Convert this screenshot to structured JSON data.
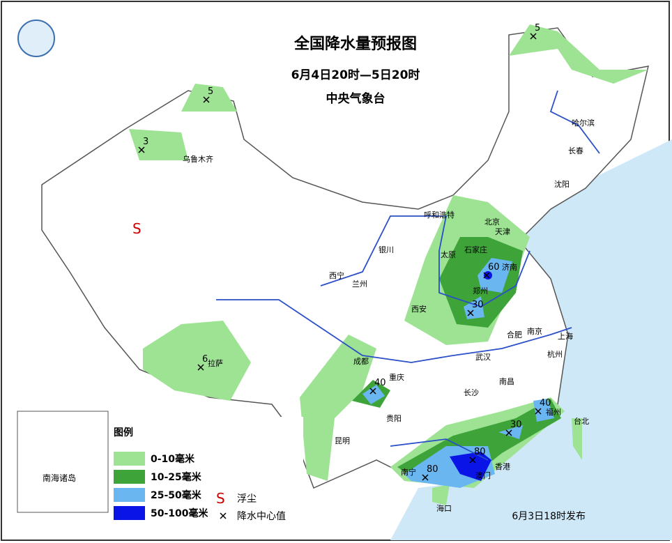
{
  "header": {
    "title": "全国降水量预报图",
    "period": "6月4日20时—5日20时",
    "issuer": "中央气象台"
  },
  "cities": [
    "乌鲁木齐",
    "哈尔滨",
    "长春",
    "沈阳",
    "呼和浩特",
    "北京",
    "天津",
    "银川",
    "石家庄",
    "太原",
    "济南",
    "西宁",
    "兰州",
    "郑州",
    "西安",
    "合肥",
    "南京",
    "上海",
    "武汉",
    "杭州",
    "成都",
    "重庆",
    "长沙",
    "南昌",
    "拉萨",
    "贵阳",
    "福州",
    "台北",
    "昆明",
    "南宁",
    "香港",
    "澳门",
    "海口"
  ],
  "centers": [
    5,
    5,
    3,
    60,
    30,
    6,
    40,
    40,
    30,
    80,
    80
  ],
  "dust_symbol": "S",
  "legend": {
    "title": "图例",
    "items": [
      {
        "label": "0-10毫米",
        "color": "#9de393"
      },
      {
        "label": "10-25毫米",
        "color": "#3ea43a"
      },
      {
        "label": "25-50毫米",
        "color": "#6ab6f0"
      },
      {
        "label": "50-100毫米",
        "color": "#0a14e6"
      }
    ],
    "dust": "浮尘",
    "center": "降水中心值"
  },
  "inset": "南海诸岛",
  "footer": "6月3日18时发布"
}
